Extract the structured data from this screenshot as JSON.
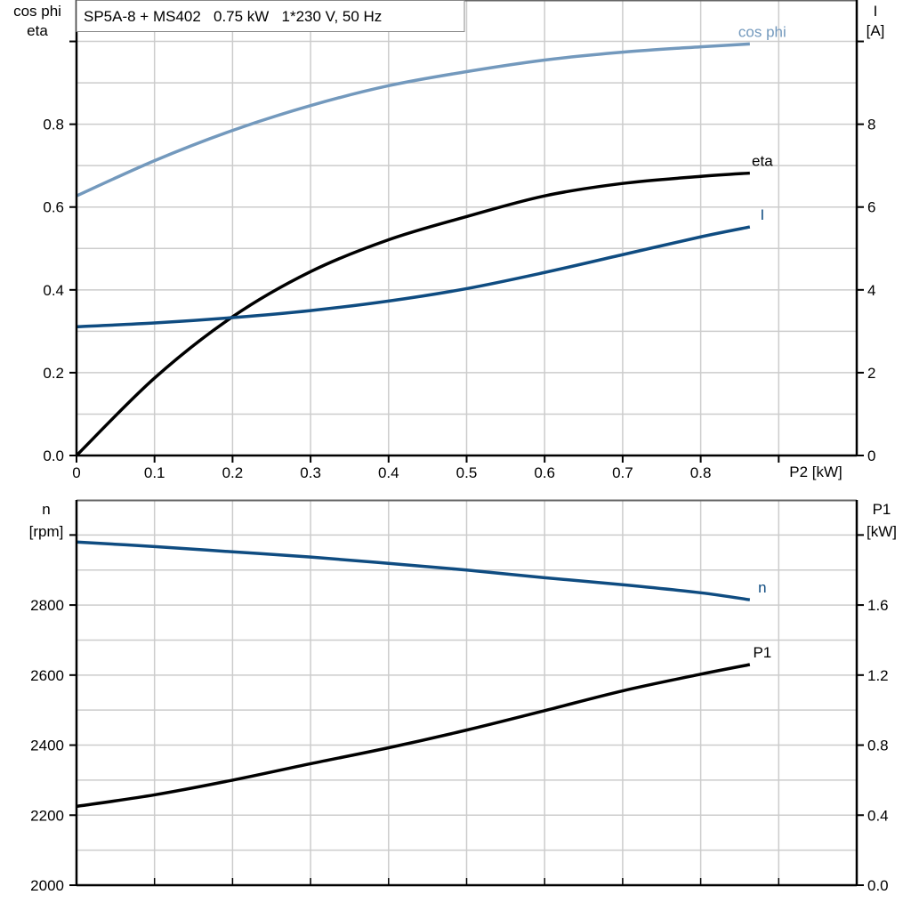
{
  "chart_data": [
    {
      "type": "line",
      "title": "SP5A-8 + MS402   0.75 kW   1*230 V, 50 Hz",
      "xlabel": "P2 [kW]",
      "ylabel_left": [
        "cos phi",
        "eta"
      ],
      "ylabel_right": [
        "I",
        "[A]"
      ],
      "xlim": [
        0,
        1.0
      ],
      "ylim_left": [
        0,
        1.1
      ],
      "ylim_right": [
        0,
        11
      ],
      "x_ticks": [
        "0",
        "0.1",
        "0.2",
        "0.3",
        "0.4",
        "0.5",
        "0.6",
        "0.7",
        "0.8"
      ],
      "y_ticks_left": [
        "0.0",
        "0.2",
        "0.4",
        "0.6",
        "0.8"
      ],
      "y_ticks_right": [
        "0",
        "2",
        "4",
        "6",
        "8"
      ],
      "grid": true,
      "x": [
        0,
        0.1,
        0.2,
        0.3,
        0.4,
        0.5,
        0.6,
        0.7,
        0.8,
        0.863
      ],
      "series": [
        {
          "name": "cos phi",
          "axis": "left",
          "color": "#7399bd",
          "values": [
            0.627,
            0.712,
            0.785,
            0.845,
            0.893,
            0.927,
            0.955,
            0.974,
            0.987,
            0.994
          ]
        },
        {
          "name": "eta",
          "axis": "left",
          "color": "#000000",
          "values": [
            0.0,
            0.187,
            0.335,
            0.444,
            0.521,
            0.577,
            0.627,
            0.657,
            0.674,
            0.682
          ]
        },
        {
          "name": "I",
          "axis": "right",
          "color": "#0f4c81",
          "values": [
            3.11,
            3.2,
            3.33,
            3.5,
            3.73,
            4.03,
            4.42,
            4.85,
            5.28,
            5.52
          ]
        }
      ]
    },
    {
      "type": "line",
      "ylabel_left": [
        "n",
        "[rpm]"
      ],
      "ylabel_right": [
        "P1",
        "[kW]"
      ],
      "xlim": [
        0,
        1.0
      ],
      "ylim_left": [
        2000,
        3100
      ],
      "ylim_right": [
        0,
        2.2
      ],
      "y_ticks_left": [
        "2000",
        "2200",
        "2400",
        "2600",
        "2800"
      ],
      "y_ticks_right": [
        "0.0",
        "0.4",
        "0.8",
        "1.2",
        "1.6"
      ],
      "grid": true,
      "x": [
        0,
        0.1,
        0.2,
        0.3,
        0.4,
        0.5,
        0.6,
        0.7,
        0.8,
        0.863
      ],
      "series": [
        {
          "name": "n",
          "axis": "left",
          "color": "#0f4c81",
          "values": [
            2980,
            2967,
            2952,
            2937,
            2919,
            2900,
            2878,
            2858,
            2835,
            2815
          ]
        },
        {
          "name": "P1",
          "axis": "right",
          "color": "#000000",
          "values": [
            0.45,
            0.516,
            0.6,
            0.694,
            0.785,
            0.886,
            0.997,
            1.11,
            1.205,
            1.26
          ]
        }
      ]
    }
  ]
}
